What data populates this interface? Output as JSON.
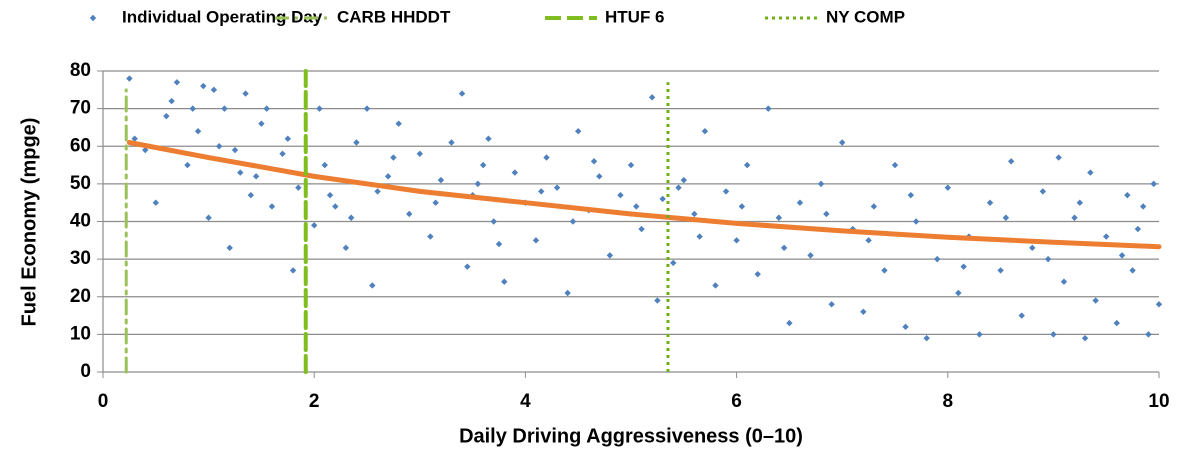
{
  "chart_data": {
    "type": "scatter",
    "xlabel": "Daily Driving Aggressiveness (0–10)",
    "ylabel": "Fuel Economy (mpge)",
    "xlim": [
      0,
      10
    ],
    "ylim": [
      0,
      80
    ],
    "xticks": [
      0,
      2,
      4,
      6,
      8,
      10
    ],
    "yticks": [
      0,
      10,
      20,
      30,
      40,
      50,
      60,
      70,
      80
    ],
    "grid": true,
    "legend": "top",
    "series": [
      {
        "name": "Individual Operating Day",
        "type": "scatter",
        "color": "#4f81bd",
        "x": [
          0.25,
          0.3,
          0.4,
          0.5,
          0.6,
          0.65,
          0.7,
          0.8,
          0.9,
          0.95,
          1.0,
          1.05,
          1.1,
          1.15,
          1.2,
          1.3,
          1.35,
          1.4,
          1.5,
          1.55,
          1.6,
          1.7,
          1.75,
          1.8,
          1.85,
          2.0,
          2.05,
          2.1,
          2.2,
          2.3,
          2.4,
          2.5,
          2.55,
          2.6,
          2.7,
          2.8,
          2.9,
          3.0,
          3.1,
          3.2,
          3.3,
          3.4,
          3.45,
          3.5,
          3.6,
          3.7,
          3.8,
          3.9,
          4.0,
          4.1,
          4.2,
          4.3,
          4.4,
          4.5,
          4.6,
          4.7,
          4.8,
          4.9,
          5.0,
          5.1,
          5.2,
          5.25,
          5.3,
          5.4,
          5.5,
          5.6,
          5.7,
          5.8,
          5.9,
          6.0,
          6.1,
          6.2,
          6.3,
          6.4,
          6.5,
          6.6,
          6.7,
          6.8,
          6.9,
          7.0,
          7.1,
          7.2,
          7.3,
          7.4,
          7.5,
          7.6,
          7.7,
          7.8,
          7.9,
          8.0,
          8.1,
          8.2,
          8.3,
          8.4,
          8.5,
          8.6,
          8.7,
          8.8,
          8.9,
          9.0,
          9.05,
          9.1,
          9.2,
          9.3,
          9.35,
          9.4,
          9.5,
          9.6,
          9.7,
          9.75,
          9.8,
          9.9,
          9.95,
          10.0,
          0.85,
          1.25,
          1.45,
          2.15,
          2.35,
          2.75,
          3.15,
          3.55,
          3.65,
          3.75,
          4.15,
          4.45,
          4.65,
          5.05,
          5.45,
          5.65,
          6.05,
          6.45,
          6.85,
          7.25,
          7.65,
          8.15,
          8.55,
          8.95,
          9.25,
          9.65,
          9.85
        ],
        "values": [
          78,
          62,
          59,
          45,
          68,
          72,
          77,
          55,
          64,
          76,
          41,
          75,
          60,
          70,
          33,
          53,
          74,
          47,
          66,
          70,
          44,
          58,
          62,
          27,
          49,
          39,
          70,
          55,
          44,
          33,
          61,
          70,
          23,
          48,
          52,
          66,
          42,
          58,
          36,
          51,
          61,
          74,
          28,
          47,
          55,
          40,
          24,
          53,
          45,
          35,
          57,
          49,
          21,
          64,
          43,
          52,
          31,
          47,
          55,
          38,
          73,
          19,
          46,
          29,
          51,
          42,
          64,
          23,
          48,
          35,
          55,
          26,
          70,
          41,
          13,
          45,
          31,
          50,
          18,
          61,
          38,
          16,
          44,
          27,
          55,
          12,
          40,
          9,
          30,
          49,
          21,
          36,
          10,
          45,
          27,
          56,
          15,
          33,
          48,
          10,
          57,
          24,
          41,
          9,
          53,
          19,
          36,
          13,
          47,
          27,
          38,
          10,
          50,
          18,
          70,
          59,
          52,
          47,
          41,
          57,
          45,
          50,
          62,
          34,
          48,
          40,
          56,
          44,
          49,
          36,
          44,
          33,
          42,
          35,
          47,
          28,
          41,
          30,
          45,
          31,
          44
        ]
      },
      {
        "name": "CARB HHDDT",
        "type": "line",
        "style": "dash-dot",
        "color": "#9bc25a",
        "x": [
          0.22,
          0.22
        ],
        "values": [
          0,
          75
        ]
      },
      {
        "name": "HTUF 6",
        "type": "line",
        "style": "dash",
        "color": "#80bd1e",
        "x": [
          1.92,
          1.92
        ],
        "values": [
          0,
          80
        ]
      },
      {
        "name": "NY COMP",
        "type": "line",
        "style": "dot",
        "color": "#70ad1a",
        "x": [
          5.35,
          5.35
        ],
        "values": [
          0,
          77
        ]
      },
      {
        "type": "line",
        "style": "solid",
        "color": "#ed7d31",
        "x": [
          0.25,
          1,
          2,
          3,
          4,
          5,
          6,
          7,
          8,
          9,
          10
        ],
        "values": [
          61,
          57,
          52,
          48,
          45,
          42,
          39.5,
          37.5,
          35.8,
          34.5,
          33.3
        ]
      }
    ]
  }
}
